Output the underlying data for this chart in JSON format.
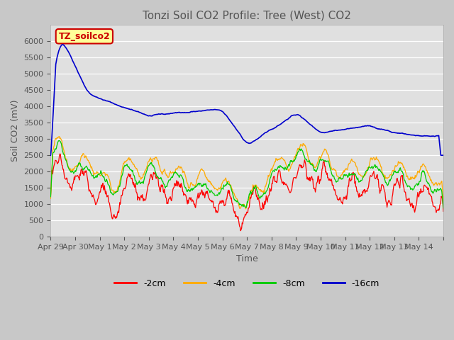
{
  "title": "Tonzi Soil CO2 Profile: Tree (West) CO2",
  "xlabel": "Time",
  "ylabel": "Soil CO2 (mV)",
  "ylim": [
    0,
    6500
  ],
  "yticks": [
    0,
    500,
    1000,
    1500,
    2000,
    2500,
    3000,
    3500,
    4000,
    4500,
    5000,
    5500,
    6000
  ],
  "colors": {
    "2cm": "#ff0000",
    "4cm": "#ffaa00",
    "8cm": "#00cc00",
    "16cm": "#0000cc"
  },
  "legend_labels": [
    "-2cm",
    "-4cm",
    "-8cm",
    "-16cm"
  ],
  "annotation_text": "TZ_soilco2",
  "annotation_color": "#cc0000",
  "annotation_bg": "#ffff99",
  "background_color": "#e0e0e0",
  "x_tick_labels": [
    "Apr 29",
    "Apr 30",
    "May 1",
    "May 2",
    "May 3",
    "May 4",
    "May 5",
    "May 6",
    "May 7",
    "May 8",
    "May 9",
    "May 10",
    "May 11",
    "May 12",
    "May 13",
    "May 14",
    ""
  ]
}
